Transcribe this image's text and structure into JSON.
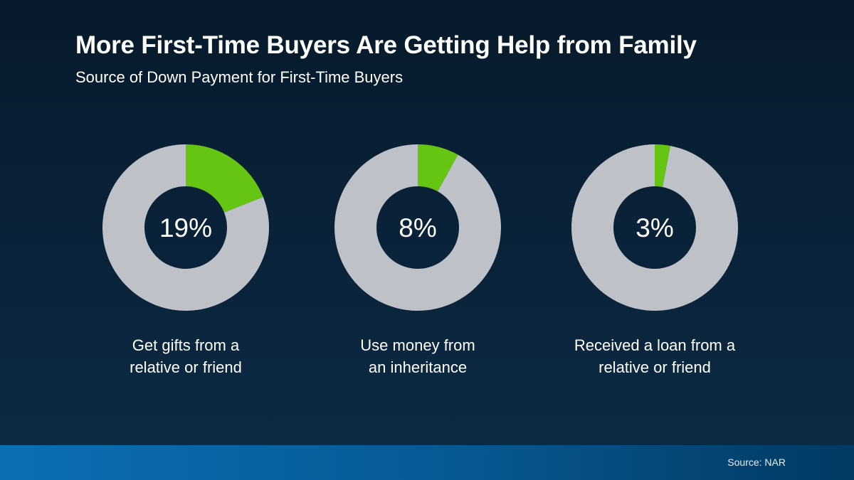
{
  "chart_data": {
    "type": "pie",
    "title": "More First-Time Buyers Are Getting Help from Family",
    "subtitle": "Source of Down Payment for First-Time Buyers",
    "charts": [
      {
        "value": 19,
        "display": "19%",
        "label_lines": [
          "Get gifts from a",
          "relative or friend"
        ]
      },
      {
        "value": 8,
        "display": "8%",
        "label_lines": [
          "Use money from",
          "an inheritance"
        ]
      },
      {
        "value": 3,
        "display": "3%",
        "label_lines": [
          "Received a loan from a",
          "relative or friend"
        ]
      }
    ],
    "colors": {
      "highlight": "#66c413",
      "remainder": "#bfc1c8"
    }
  },
  "footer": {
    "source": "Source: NAR"
  }
}
